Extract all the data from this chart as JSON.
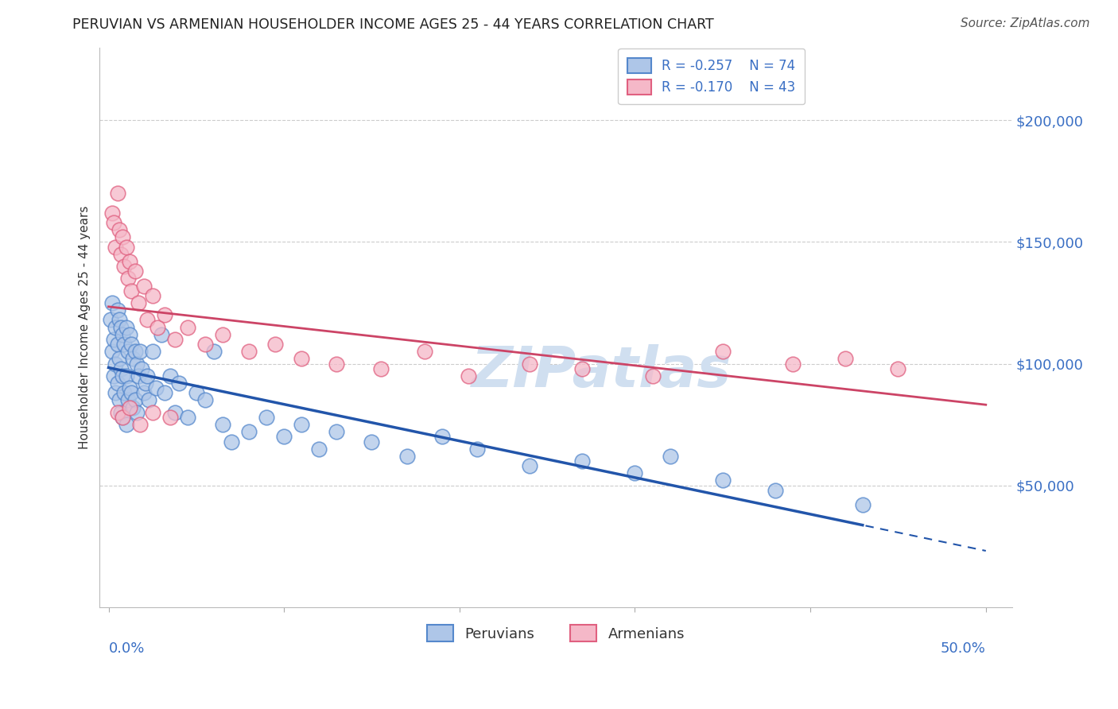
{
  "title": "PERUVIAN VS ARMENIAN HOUSEHOLDER INCOME AGES 25 - 44 YEARS CORRELATION CHART",
  "source": "Source: ZipAtlas.com",
  "ylabel": "Householder Income Ages 25 - 44 years",
  "ytick_values": [
    50000,
    100000,
    150000,
    200000
  ],
  "xlim": [
    0.0,
    0.5
  ],
  "ylim": [
    0,
    230000
  ],
  "legend_r1": "R = -0.257",
  "legend_n1": "N = 74",
  "legend_r2": "R = -0.170",
  "legend_n2": "N = 43",
  "peruvian_color": "#aec6e8",
  "armenian_color": "#f5b8c8",
  "peruvian_edge_color": "#5588cc",
  "armenian_edge_color": "#e06080",
  "peruvian_line_color": "#2255aa",
  "armenian_line_color": "#cc4466",
  "watermark_color": "#d0dff0",
  "peruvians_x": [
    0.001,
    0.002,
    0.002,
    0.003,
    0.003,
    0.004,
    0.004,
    0.004,
    0.005,
    0.005,
    0.005,
    0.006,
    0.006,
    0.006,
    0.007,
    0.007,
    0.007,
    0.008,
    0.008,
    0.008,
    0.009,
    0.009,
    0.01,
    0.01,
    0.01,
    0.011,
    0.011,
    0.012,
    0.012,
    0.013,
    0.013,
    0.014,
    0.014,
    0.015,
    0.015,
    0.016,
    0.016,
    0.017,
    0.018,
    0.019,
    0.02,
    0.021,
    0.022,
    0.023,
    0.025,
    0.027,
    0.03,
    0.032,
    0.035,
    0.038,
    0.04,
    0.045,
    0.05,
    0.055,
    0.06,
    0.065,
    0.07,
    0.08,
    0.09,
    0.1,
    0.11,
    0.12,
    0.13,
    0.15,
    0.17,
    0.19,
    0.21,
    0.24,
    0.27,
    0.3,
    0.32,
    0.35,
    0.38,
    0.43
  ],
  "peruvians_y": [
    118000,
    105000,
    125000,
    110000,
    95000,
    115000,
    100000,
    88000,
    122000,
    108000,
    92000,
    118000,
    102000,
    85000,
    115000,
    98000,
    80000,
    112000,
    95000,
    78000,
    108000,
    88000,
    115000,
    95000,
    75000,
    105000,
    85000,
    112000,
    90000,
    108000,
    88000,
    102000,
    82000,
    105000,
    85000,
    100000,
    80000,
    95000,
    105000,
    98000,
    88000,
    92000,
    95000,
    85000,
    105000,
    90000,
    112000,
    88000,
    95000,
    80000,
    92000,
    78000,
    88000,
    85000,
    105000,
    75000,
    68000,
    72000,
    78000,
    70000,
    75000,
    65000,
    72000,
    68000,
    62000,
    70000,
    65000,
    58000,
    60000,
    55000,
    62000,
    52000,
    48000,
    42000
  ],
  "armenians_x": [
    0.002,
    0.003,
    0.004,
    0.005,
    0.006,
    0.007,
    0.008,
    0.009,
    0.01,
    0.011,
    0.012,
    0.013,
    0.015,
    0.017,
    0.02,
    0.022,
    0.025,
    0.028,
    0.032,
    0.038,
    0.045,
    0.055,
    0.065,
    0.08,
    0.095,
    0.11,
    0.13,
    0.155,
    0.18,
    0.205,
    0.24,
    0.27,
    0.31,
    0.35,
    0.39,
    0.42,
    0.45,
    0.005,
    0.008,
    0.012,
    0.018,
    0.025,
    0.035
  ],
  "armenians_y": [
    162000,
    158000,
    148000,
    170000,
    155000,
    145000,
    152000,
    140000,
    148000,
    135000,
    142000,
    130000,
    138000,
    125000,
    132000,
    118000,
    128000,
    115000,
    120000,
    110000,
    115000,
    108000,
    112000,
    105000,
    108000,
    102000,
    100000,
    98000,
    105000,
    95000,
    100000,
    98000,
    95000,
    105000,
    100000,
    102000,
    98000,
    80000,
    78000,
    82000,
    75000,
    80000,
    78000
  ]
}
